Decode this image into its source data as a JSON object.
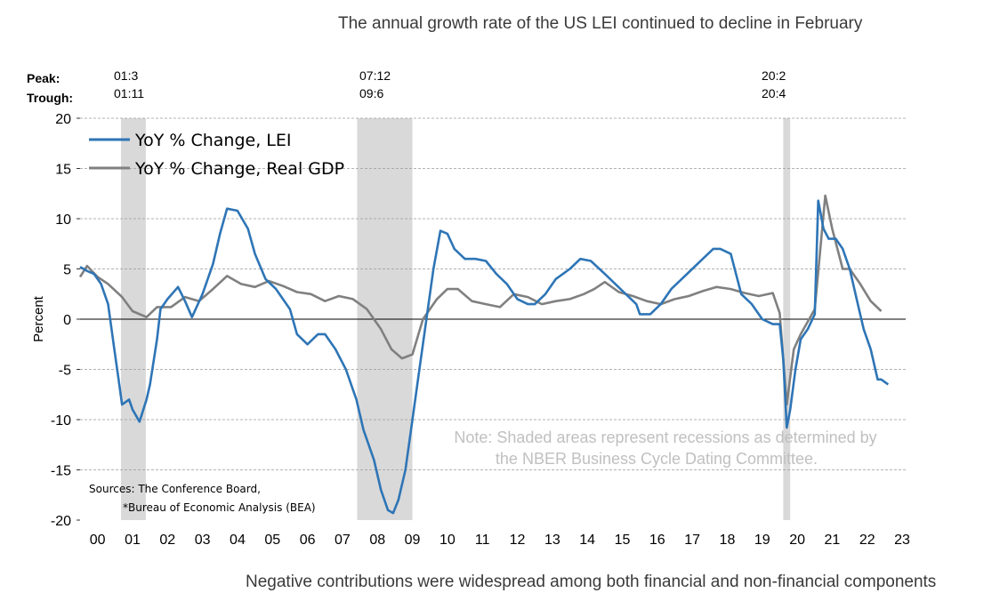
{
  "titles": {
    "top": "The annual growth rate of the US LEI continued to decline in February",
    "bottom": "Negative contributions were widespread among both financial and non-financial components"
  },
  "labels": {
    "peak": "Peak:",
    "trough": "Trough:"
  },
  "colors": {
    "lei": "#2E75B6",
    "gdp": "#808080",
    "recession": "#d9d9d9",
    "grid": "#9a9a9a",
    "note": "#c0c0c0"
  },
  "chart_data": {
    "type": "line",
    "ylabel": "Percent",
    "ylim": [
      -20,
      20
    ],
    "yticks": [
      -20,
      -15,
      -10,
      -5,
      0,
      5,
      10,
      15,
      20
    ],
    "xlim": [
      2000,
      2023.6
    ],
    "xtick_labels": [
      "00",
      "01",
      "02",
      "03",
      "04",
      "05",
      "06",
      "07",
      "08",
      "09",
      "10",
      "11",
      "12",
      "13",
      "14",
      "15",
      "16",
      "17",
      "18",
      "19",
      "20",
      "21",
      "22",
      "23"
    ],
    "grid": "horizontal dashed",
    "legend_position": "top-left",
    "recessions": [
      {
        "peak": "01:3",
        "trough": "01:11",
        "start": 2001.17,
        "end": 2001.88
      },
      {
        "peak": "07:12",
        "trough": "09:6",
        "start": 2007.92,
        "end": 2009.5
      },
      {
        "peak": "20:2",
        "trough": "20:4",
        "start": 2020.1,
        "end": 2020.3
      }
    ],
    "series": [
      {
        "name": "YoY % Change, LEI",
        "x": [
          2000.0,
          2000.2,
          2000.4,
          2000.6,
          2000.8,
          2001.0,
          2001.1,
          2001.2,
          2001.4,
          2001.5,
          2001.7,
          2001.9,
          2002.0,
          2002.2,
          2002.3,
          2002.5,
          2002.8,
          2003.0,
          2003.2,
          2003.5,
          2003.8,
          2004.0,
          2004.2,
          2004.5,
          2004.8,
          2005.0,
          2005.3,
          2005.6,
          2006.0,
          2006.2,
          2006.5,
          2006.8,
          2007.0,
          2007.3,
          2007.6,
          2007.9,
          2008.1,
          2008.4,
          2008.6,
          2008.8,
          2008.95,
          2009.1,
          2009.3,
          2009.5,
          2009.7,
          2009.9,
          2010.1,
          2010.3,
          2010.5,
          2010.7,
          2011.0,
          2011.3,
          2011.6,
          2011.9,
          2012.2,
          2012.5,
          2012.8,
          2013.0,
          2013.3,
          2013.6,
          2014.0,
          2014.3,
          2014.6,
          2015.0,
          2015.3,
          2015.6,
          2015.9,
          2016.0,
          2016.3,
          2016.6,
          2016.9,
          2017.2,
          2017.5,
          2017.8,
          2018.1,
          2018.3,
          2018.6,
          2018.9,
          2019.2,
          2019.5,
          2019.8,
          2020.0,
          2020.1,
          2020.2,
          2020.3,
          2020.45,
          2020.6,
          2020.8,
          2021.0,
          2021.1,
          2021.25,
          2021.4,
          2021.6,
          2021.8,
          2022.0,
          2022.2,
          2022.4,
          2022.6,
          2022.8,
          2022.9,
          2023.1
        ],
        "values": [
          5.2,
          4.8,
          4.5,
          3.5,
          1.5,
          -3.5,
          -6,
          -8.5,
          -8,
          -9,
          -10.2,
          -8,
          -6.5,
          -2,
          1,
          2,
          3.2,
          1.8,
          0.2,
          2.5,
          5.5,
          8.5,
          11,
          10.8,
          9,
          6.5,
          4,
          3,
          1,
          -1.5,
          -2.5,
          -1.5,
          -1.5,
          -3,
          -5,
          -8,
          -11,
          -14,
          -17,
          -19,
          -19.3,
          -18,
          -15,
          -10,
          -5,
          0,
          5,
          8.8,
          8.5,
          7,
          6,
          6,
          5.8,
          4.5,
          3.5,
          2,
          1.5,
          1.5,
          2.5,
          4,
          5,
          6,
          5.8,
          4.5,
          3.5,
          2.5,
          1.5,
          0.5,
          0.5,
          1.5,
          3,
          4,
          5,
          6,
          7,
          7,
          6.5,
          2.5,
          1.5,
          0,
          -0.5,
          -0.5,
          -4,
          -10.8,
          -9,
          -5,
          -2,
          -1,
          0.5,
          11.8,
          9,
          8,
          8,
          7,
          5,
          2,
          -1,
          -3,
          -6,
          -6,
          -6.5
        ]
      },
      {
        "name": "YoY % Change, Real GDP",
        "x": [
          2000.0,
          2000.2,
          2000.5,
          2000.8,
          2001.2,
          2001.5,
          2001.9,
          2002.2,
          2002.6,
          2003.0,
          2003.4,
          2003.8,
          2004.2,
          2004.6,
          2005.0,
          2005.4,
          2005.8,
          2006.2,
          2006.6,
          2007.0,
          2007.4,
          2007.8,
          2008.2,
          2008.6,
          2008.9,
          2009.2,
          2009.5,
          2009.8,
          2010.2,
          2010.5,
          2010.8,
          2011.2,
          2011.6,
          2012.0,
          2012.4,
          2012.8,
          2013.2,
          2013.6,
          2014.0,
          2014.4,
          2014.7,
          2015.0,
          2015.4,
          2015.8,
          2016.2,
          2016.6,
          2017.0,
          2017.4,
          2017.8,
          2018.2,
          2018.6,
          2019.0,
          2019.4,
          2019.8,
          2020.0,
          2020.2,
          2020.4,
          2020.6,
          2021.0,
          2021.3,
          2021.5,
          2021.8,
          2022.0,
          2022.3,
          2022.6,
          2022.9
        ],
        "values": [
          4.2,
          5.3,
          4.2,
          3.5,
          2.2,
          0.8,
          0.2,
          1.2,
          1.2,
          2.2,
          1.8,
          3.0,
          4.3,
          3.5,
          3.2,
          3.8,
          3.3,
          2.7,
          2.5,
          1.8,
          2.3,
          2.0,
          1.0,
          -1.0,
          -3.0,
          -3.9,
          -3.5,
          0.0,
          2.0,
          3.0,
          3.0,
          1.8,
          1.5,
          1.2,
          2.5,
          2.2,
          1.5,
          1.8,
          2.0,
          2.5,
          3.0,
          3.7,
          2.7,
          2.3,
          1.8,
          1.5,
          2.0,
          2.3,
          2.8,
          3.2,
          3.0,
          2.6,
          2.3,
          2.6,
          0.6,
          -8.5,
          -3.0,
          -1.5,
          1.0,
          12.3,
          9.0,
          5.0,
          5.0,
          3.5,
          1.8,
          0.8
        ]
      }
    ],
    "note": [
      "Note: Shaded areas represent recessions as determined by",
      "the NBER Business Cycle Dating Committee."
    ],
    "sources": [
      "Sources: The Conference Board,",
      "*Bureau of Economic Analysis (BEA)"
    ]
  }
}
